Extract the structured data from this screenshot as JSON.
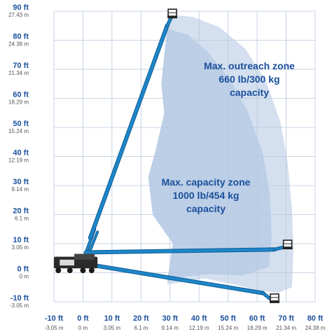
{
  "chart_data": {
    "type": "diagram",
    "x_axis": {
      "ticks_ft": [
        "-10 ft",
        "0 ft",
        "10 ft",
        "20 ft",
        "30 ft",
        "40 ft",
        "50 ft",
        "60 ft",
        "70 ft",
        "80 ft"
      ],
      "ticks_m": [
        "-3.05 m",
        "0 m",
        "3.05 m",
        "6.1 m",
        "9.14 m",
        "12.19 m",
        "15.24 m",
        "18.29 m",
        "21.34 m",
        "24.38 m"
      ],
      "range_ft": [
        -10,
        80
      ]
    },
    "y_axis": {
      "ticks_ft": [
        "90 ft",
        "80 ft",
        "70 ft",
        "60 ft",
        "50 ft",
        "40 ft",
        "30 ft",
        "20 ft",
        "10 ft",
        "0 ft",
        "-10 ft"
      ],
      "ticks_m": [
        "27.43 m",
        "24.38 m",
        "21.34 m",
        "18.29 m",
        "15.24 m",
        "12.19 m",
        "9.14 m",
        "6.1 m",
        "3.05 m",
        "0 m",
        "-3.05 m"
      ],
      "range_ft": [
        -10,
        90
      ]
    },
    "grid": true,
    "zones": [
      {
        "lines": [
          "Max. outreach zone",
          "660 lb/300 kg",
          "capacity"
        ],
        "color": "#d4e0ef"
      },
      {
        "lines": [
          "Max. capacity zone",
          "1000 lb/454 kg",
          "capacity"
        ],
        "color": "#bccfe7"
      }
    ],
    "colors": {
      "boom": "#1e86c8",
      "boom_dark": "#0f5e96",
      "label": "#1a4f9c",
      "grid": "#b9c7dd"
    }
  }
}
